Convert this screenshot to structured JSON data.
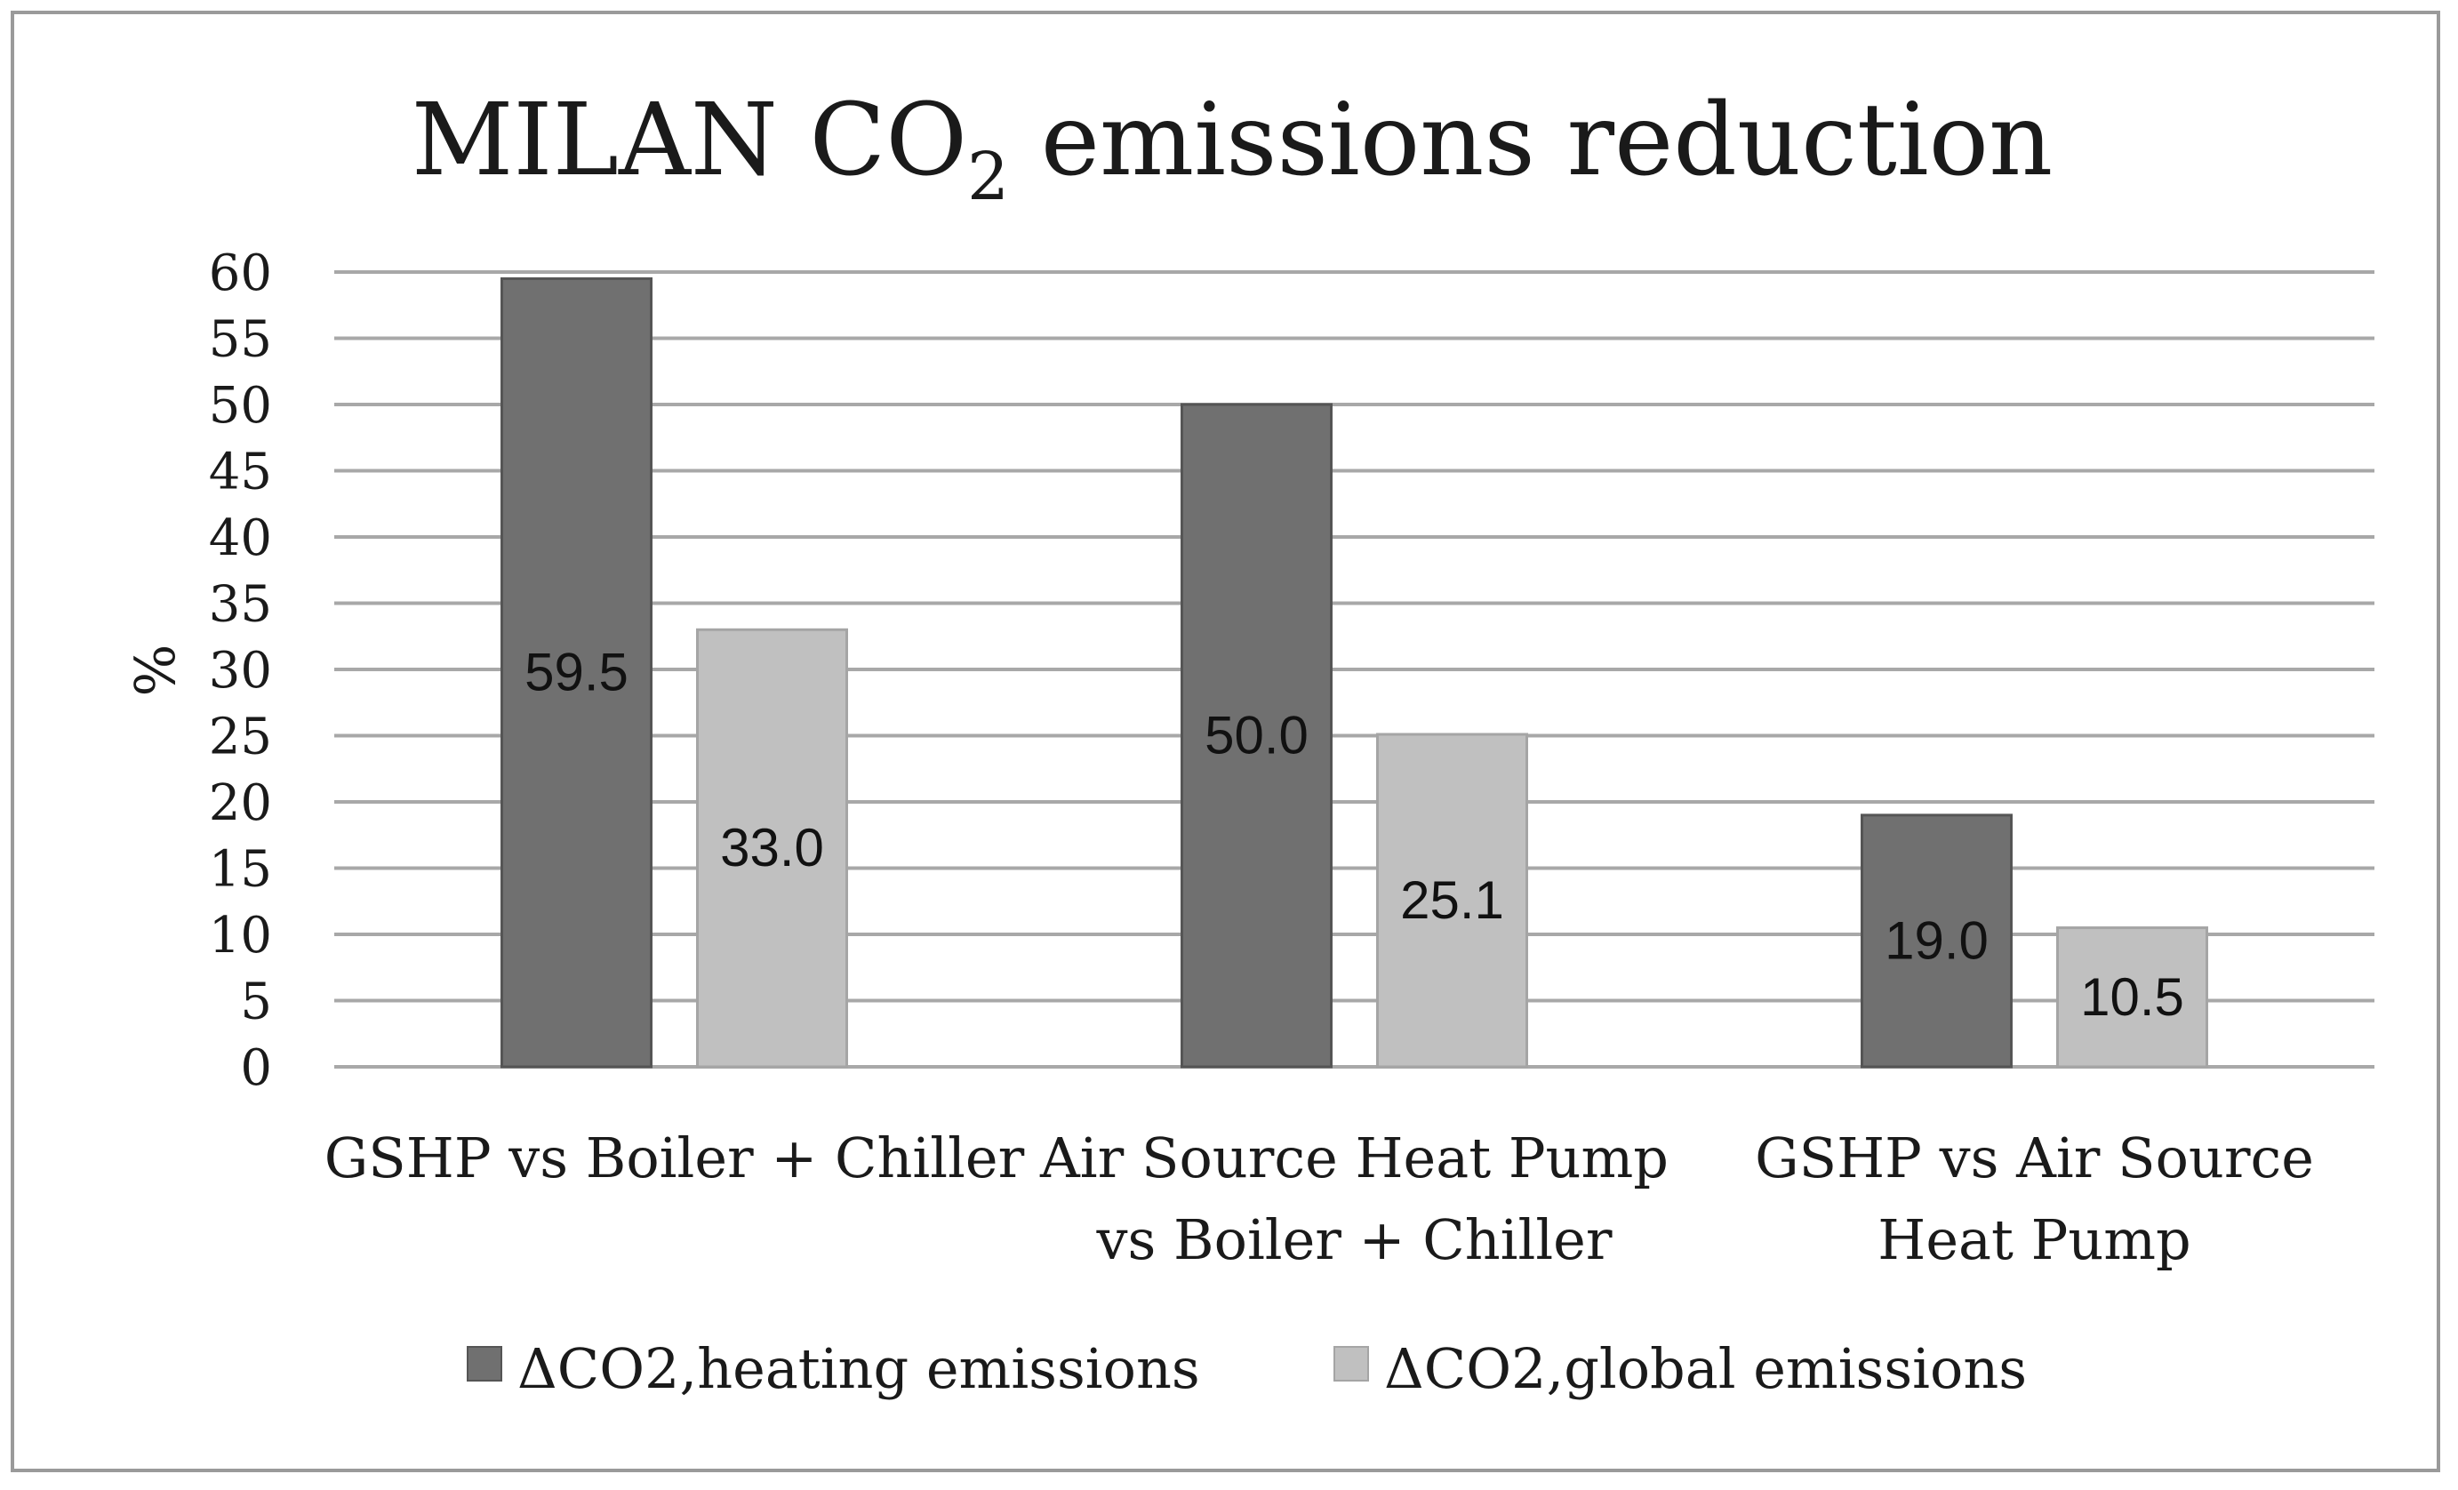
{
  "chart_data": {
    "type": "bar",
    "title_main": "MILAN CO",
    "title_subscript": "2",
    "title_rest": " emissions reduction",
    "ylabel": "%",
    "xlabel": "",
    "ylim": [
      0,
      60
    ],
    "ytick_step": 5,
    "yticks": [
      "0",
      "5",
      "10",
      "15",
      "20",
      "25",
      "30",
      "35",
      "40",
      "45",
      "50",
      "55",
      "60"
    ],
    "grid": true,
    "legend_position": "bottom",
    "categories": [
      [
        "GSHP vs Boiler + Chiller"
      ],
      [
        "Air Source Heat Pump",
        "vs Boiler +  Chiller"
      ],
      [
        "GSHP vs Air Source",
        "Heat Pump"
      ]
    ],
    "series": [
      {
        "name": "ΔCO2,heating emissions",
        "color": "#707070",
        "values": [
          59.5,
          50.0,
          19.0
        ],
        "labels": [
          "59.5",
          "50.0",
          "19.0"
        ]
      },
      {
        "name": "ΔCO2,global emissions",
        "color": "#c0c0c0",
        "values": [
          33.0,
          25.1,
          10.5
        ],
        "labels": [
          "33.0",
          "25.1",
          "10.5"
        ]
      }
    ]
  }
}
